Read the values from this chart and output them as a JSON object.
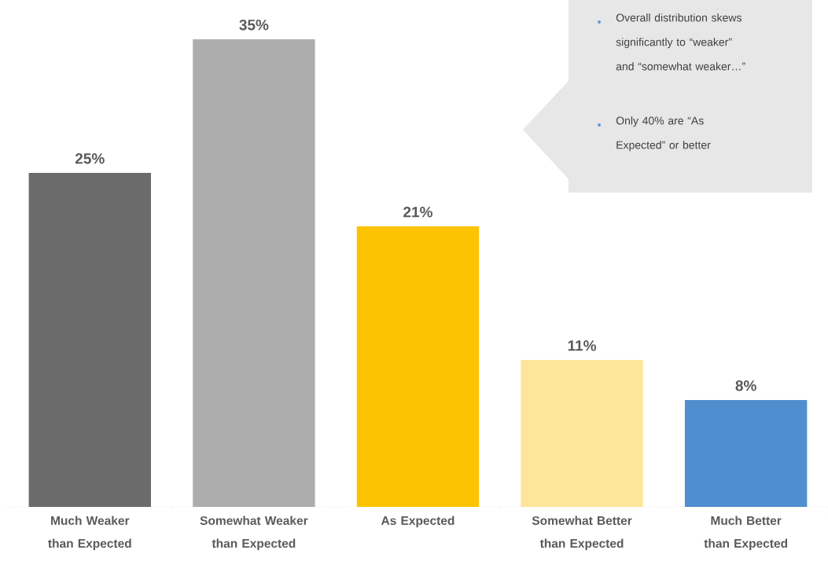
{
  "chart_data": {
    "type": "bar",
    "categories": [
      "Much Weaker than Expected",
      "Somewhat Weaker than Expected",
      "As Expected",
      "Somewhat Better than Expected",
      "Much Better than Expected"
    ],
    "values": [
      25,
      35,
      21,
      11,
      8
    ],
    "colors": [
      "#6b6b6b",
      "#adadad",
      "#fcc400",
      "#fde699",
      "#4f8fcf"
    ],
    "value_labels": [
      "25%",
      "35%",
      "21%",
      "11%",
      "8%"
    ],
    "annotations": [
      "Overall distribution skews significantly to “weaker” and “somewhat weaker…”",
      "Only 40% are “As Expected” or better"
    ],
    "data_labels": false
  }
}
